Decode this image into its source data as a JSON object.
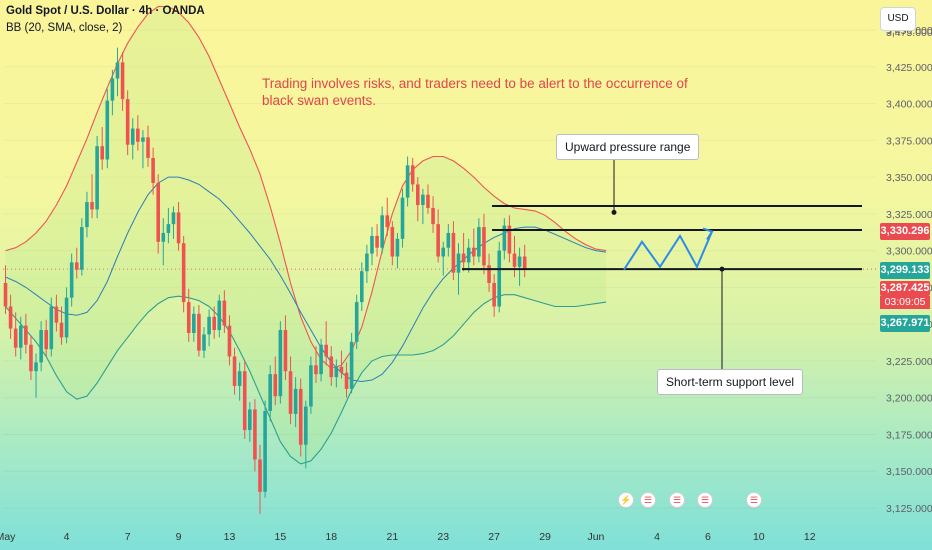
{
  "header": {
    "title": "Gold Spot / U.S. Dollar · 4h · OANDA",
    "indicator": "BB (20, SMA, close, 2)"
  },
  "currency": "USD",
  "annotation_text": "Trading involves risks, and traders need to be alert to the occurrence of black swan events.",
  "callouts": {
    "upper": "Upward pressure range",
    "lower": "Short-term support level"
  },
  "price_tags": {
    "resistance": "3,330.296",
    "upper_band": "3,299.133",
    "last_price": "3,287.425",
    "countdown": "03:09:05",
    "lower_band": "3,267.971"
  },
  "colors": {
    "up_candle": "#26a69a",
    "down_candle": "#ef5350",
    "bb_outer": "#f05454",
    "bb_basis": "#2c7fb8",
    "bb_lower": "#2e9e8f",
    "projection": "#2b8de8",
    "level_line": "#131722",
    "price_tag_red": "#e94b50",
    "price_tag_teal": "#26a69a"
  },
  "chart_data": {
    "type": "candlestick",
    "symbol": "XAUUSD",
    "timeframe": "4h",
    "ylim": [
      3115,
      3485
    ],
    "y_ticks": [
      3125,
      3150,
      3175,
      3200,
      3225,
      3250,
      3275,
      3300,
      3325,
      3350,
      3375,
      3400,
      3425,
      3450
    ],
    "y_tick_labels": [
      "3,125.000",
      "3,150.000",
      "3,175.000",
      "3,200.000",
      "3,225.000",
      "3,250.000",
      "3,275.000",
      "3,300.000",
      "3,325.000",
      "3,350.000",
      "3,375.000",
      "3,400.000",
      "3,425.000",
      "3,450.000"
    ],
    "x_labels": [
      "May",
      "4",
      "7",
      "9",
      "13",
      "15",
      "18",
      "21",
      "23",
      "27",
      "29",
      "Jun",
      "4",
      "6",
      "10",
      "12"
    ],
    "x_label_bars": [
      0,
      12,
      24,
      34,
      44,
      54,
      64,
      76,
      86,
      96,
      106,
      116,
      128,
      138,
      148,
      158
    ],
    "ohlc": [
      [
        3278,
        3290,
        3257,
        3262
      ],
      [
        3262,
        3270,
        3240,
        3247
      ],
      [
        3247,
        3258,
        3228,
        3234
      ],
      [
        3234,
        3255,
        3226,
        3249
      ],
      [
        3249,
        3257,
        3230,
        3236
      ],
      [
        3236,
        3242,
        3212,
        3218
      ],
      [
        3218,
        3230,
        3200,
        3224
      ],
      [
        3224,
        3252,
        3218,
        3246
      ],
      [
        3246,
        3253,
        3228,
        3233
      ],
      [
        3233,
        3268,
        3228,
        3262
      ],
      [
        3262,
        3270,
        3245,
        3251
      ],
      [
        3251,
        3262,
        3236,
        3241
      ],
      [
        3241,
        3275,
        3237,
        3268
      ],
      [
        3268,
        3298,
        3262,
        3292
      ],
      [
        3292,
        3302,
        3281,
        3287
      ],
      [
        3287,
        3322,
        3283,
        3316
      ],
      [
        3316,
        3340,
        3309,
        3333
      ],
      [
        3333,
        3352,
        3322,
        3328
      ],
      [
        3328,
        3378,
        3322,
        3371
      ],
      [
        3371,
        3384,
        3355,
        3362
      ],
      [
        3362,
        3410,
        3356,
        3402
      ],
      [
        3402,
        3423,
        3392,
        3417
      ],
      [
        3417,
        3438,
        3405,
        3428
      ],
      [
        3428,
        3435,
        3395,
        3403
      ],
      [
        3403,
        3409,
        3365,
        3372
      ],
      [
        3372,
        3390,
        3362,
        3383
      ],
      [
        3383,
        3392,
        3368,
        3374
      ],
      [
        3374,
        3382,
        3356,
        3377
      ],
      [
        3377,
        3385,
        3357,
        3363
      ],
      [
        3363,
        3370,
        3338,
        3346
      ],
      [
        3346,
        3352,
        3298,
        3306
      ],
      [
        3306,
        3322,
        3290,
        3312
      ],
      [
        3312,
        3329,
        3305,
        3318
      ],
      [
        3318,
        3330,
        3308,
        3326
      ],
      [
        3326,
        3333,
        3300,
        3305
      ],
      [
        3305,
        3310,
        3258,
        3265
      ],
      [
        3265,
        3274,
        3238,
        3244
      ],
      [
        3244,
        3262,
        3238,
        3257
      ],
      [
        3257,
        3263,
        3228,
        3232
      ],
      [
        3232,
        3248,
        3227,
        3243
      ],
      [
        3243,
        3260,
        3235,
        3255
      ],
      [
        3255,
        3262,
        3240,
        3246
      ],
      [
        3246,
        3270,
        3241,
        3266
      ],
      [
        3266,
        3273,
        3244,
        3249
      ],
      [
        3249,
        3256,
        3222,
        3228
      ],
      [
        3228,
        3234,
        3202,
        3208
      ],
      [
        3208,
        3224,
        3198,
        3218
      ],
      [
        3218,
        3225,
        3172,
        3178
      ],
      [
        3178,
        3197,
        3170,
        3192
      ],
      [
        3192,
        3199,
        3150,
        3158
      ],
      [
        3158,
        3168,
        3121,
        3136
      ],
      [
        3136,
        3198,
        3132,
        3191
      ],
      [
        3191,
        3222,
        3184,
        3216
      ],
      [
        3216,
        3228,
        3195,
        3201
      ],
      [
        3201,
        3252,
        3196,
        3246
      ],
      [
        3246,
        3256,
        3212,
        3218
      ],
      [
        3218,
        3228,
        3182,
        3189
      ],
      [
        3189,
        3214,
        3180,
        3206
      ],
      [
        3206,
        3213,
        3160,
        3168
      ],
      [
        3168,
        3198,
        3152,
        3194
      ],
      [
        3194,
        3228,
        3189,
        3222
      ],
      [
        3222,
        3235,
        3210,
        3216
      ],
      [
        3216,
        3240,
        3211,
        3236
      ],
      [
        3236,
        3252,
        3222,
        3228
      ],
      [
        3228,
        3235,
        3208,
        3214
      ],
      [
        3214,
        3226,
        3207,
        3221
      ],
      [
        3221,
        3232,
        3213,
        3217
      ],
      [
        3217,
        3224,
        3200,
        3206
      ],
      [
        3206,
        3244,
        3203,
        3238
      ],
      [
        3238,
        3270,
        3233,
        3265
      ],
      [
        3265,
        3292,
        3259,
        3286
      ],
      [
        3286,
        3304,
        3278,
        3298
      ],
      [
        3298,
        3316,
        3290,
        3310
      ],
      [
        3310,
        3318,
        3296,
        3302
      ],
      [
        3302,
        3330,
        3298,
        3324
      ],
      [
        3324,
        3336,
        3310,
        3316
      ],
      [
        3316,
        3320,
        3290,
        3296
      ],
      [
        3296,
        3312,
        3288,
        3308
      ],
      [
        3308,
        3342,
        3302,
        3336
      ],
      [
        3336,
        3364,
        3330,
        3358
      ],
      [
        3358,
        3363,
        3340,
        3345
      ],
      [
        3345,
        3350,
        3320,
        3331
      ],
      [
        3331,
        3342,
        3318,
        3338
      ],
      [
        3338,
        3345,
        3325,
        3329
      ],
      [
        3329,
        3337,
        3312,
        3318
      ],
      [
        3318,
        3328,
        3292,
        3296
      ],
      [
        3296,
        3306,
        3283,
        3302
      ],
      [
        3302,
        3318,
        3296,
        3312
      ],
      [
        3312,
        3320,
        3280,
        3285
      ],
      [
        3285,
        3305,
        3270,
        3298
      ],
      [
        3298,
        3312,
        3286,
        3292
      ],
      [
        3292,
        3308,
        3285,
        3302
      ],
      [
        3302,
        3315,
        3290,
        3296
      ],
      [
        3296,
        3322,
        3292,
        3316
      ],
      [
        3316,
        3325,
        3284,
        3290
      ],
      [
        3290,
        3298,
        3272,
        3278
      ],
      [
        3278,
        3284,
        3255,
        3262
      ],
      [
        3262,
        3306,
        3258,
        3300
      ],
      [
        3300,
        3322,
        3294,
        3317
      ],
      [
        3317,
        3324,
        3292,
        3298
      ],
      [
        3298,
        3310,
        3282,
        3289
      ],
      [
        3289,
        3302,
        3276,
        3296
      ],
      [
        3296,
        3304,
        3282,
        3287
      ]
    ],
    "bb_upper": [
      3300,
      3302,
      3306,
      3312,
      3320,
      3331,
      3344,
      3360,
      3376,
      3394,
      3411,
      3427,
      3441,
      3452,
      3461,
      3466,
      3466,
      3462,
      3455,
      3445,
      3432,
      3416,
      3400,
      3384,
      3369,
      3352,
      3330,
      3305,
      3278,
      3255,
      3238,
      3226,
      3220,
      3222,
      3232,
      3248,
      3272,
      3300,
      3325,
      3344,
      3355,
      3361,
      3364,
      3364,
      3361,
      3356,
      3350,
      3343,
      3337,
      3332,
      3329,
      3328,
      3327,
      3324,
      3319,
      3313,
      3308,
      3304,
      3301,
      3300
    ],
    "bb_basis": [
      3282,
      3279,
      3275,
      3270,
      3265,
      3260,
      3257,
      3256,
      3258,
      3266,
      3279,
      3296,
      3312,
      3326,
      3338,
      3346,
      3350,
      3350,
      3348,
      3345,
      3340,
      3335,
      3328,
      3320,
      3312,
      3303,
      3294,
      3283,
      3271,
      3258,
      3246,
      3234,
      3224,
      3217,
      3212,
      3211,
      3212,
      3216,
      3224,
      3235,
      3248,
      3261,
      3272,
      3281,
      3288,
      3294,
      3300,
      3305,
      3309,
      3312,
      3315,
      3316,
      3316,
      3314,
      3311,
      3308,
      3305,
      3302,
      3300,
      3299
    ],
    "bb_lower": [
      3262,
      3254,
      3246,
      3238,
      3228,
      3215,
      3204,
      3199,
      3201,
      3210,
      3221,
      3232,
      3241,
      3250,
      3258,
      3264,
      3268,
      3269,
      3268,
      3266,
      3262,
      3255,
      3245,
      3232,
      3218,
      3202,
      3186,
      3170,
      3160,
      3155,
      3157,
      3165,
      3176,
      3190,
      3205,
      3217,
      3225,
      3228,
      3229,
      3229,
      3229,
      3230,
      3232,
      3236,
      3242,
      3250,
      3258,
      3264,
      3268,
      3270,
      3270,
      3268,
      3266,
      3264,
      3262,
      3262,
      3262,
      3263,
      3264,
      3265
    ],
    "levels": [
      {
        "name": "resistance",
        "value": 3330.3
      },
      {
        "name": "upper range",
        "value": 3314
      },
      {
        "name": "support",
        "value": 3287.4
      }
    ],
    "projection": [
      3287,
      3306,
      3289,
      3310,
      3289,
      3313
    ]
  }
}
